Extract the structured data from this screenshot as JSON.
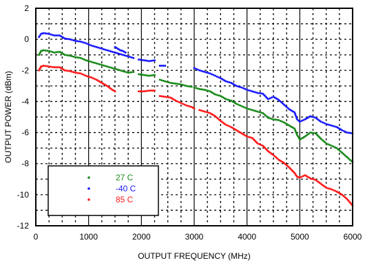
{
  "chart_data": {
    "type": "scatter",
    "title": "",
    "xlabel": "OUTPUT FREQUENCY (MHz)",
    "ylabel": "OUTPUT POWER (dBm)",
    "xlim": [
      0,
      6000
    ],
    "ylim": [
      -12,
      2
    ],
    "xticks": [
      0,
      1000,
      2000,
      3000,
      4000,
      5000,
      6000
    ],
    "yticks": [
      2,
      0,
      -2,
      -4,
      -6,
      -8,
      -10,
      -12
    ],
    "xtick_labels": [
      "0",
      "1000",
      "2000",
      "3000",
      "4000",
      "5000",
      "6000"
    ],
    "ytick_labels": [
      "2",
      "0",
      "-2",
      "-4",
      "-6",
      "-8",
      "-10",
      "-12"
    ],
    "grid": "dashed",
    "legend_position": "bottom-left",
    "series": [
      {
        "name": "27 C",
        "color": "#1a8a1a",
        "segments": [
          [
            [
              60,
              -1.0
            ],
            [
              100,
              -0.75
            ],
            [
              150,
              -0.7
            ],
            [
              250,
              -0.75
            ],
            [
              350,
              -0.85
            ],
            [
              450,
              -0.8
            ],
            [
              550,
              -1.0
            ],
            [
              650,
              -1.05
            ],
            [
              750,
              -1.15
            ],
            [
              850,
              -1.2
            ],
            [
              950,
              -1.35
            ],
            [
              1050,
              -1.45
            ],
            [
              1150,
              -1.55
            ],
            [
              1250,
              -1.65
            ],
            [
              1350,
              -1.75
            ],
            [
              1450,
              -1.85
            ],
            [
              1550,
              -1.95
            ],
            [
              1650,
              -2.05
            ],
            [
              1750,
              -2.15
            ],
            [
              1850,
              -2.1
            ]
          ],
          [
            [
              1950,
              -2.25
            ],
            [
              2050,
              -2.3
            ],
            [
              2150,
              -2.35
            ],
            [
              2250,
              -2.3
            ]
          ],
          [
            [
              2350,
              -2.6
            ],
            [
              2450,
              -2.7
            ],
            [
              2550,
              -2.8
            ],
            [
              2650,
              -2.85
            ],
            [
              2750,
              -2.9
            ],
            [
              2850,
              -3.0
            ],
            [
              2950,
              -3.05
            ]
          ],
          [
            [
              3000,
              -3.1
            ],
            [
              3100,
              -3.2
            ],
            [
              3200,
              -3.25
            ],
            [
              3300,
              -3.35
            ],
            [
              3400,
              -3.55
            ],
            [
              3500,
              -3.65
            ],
            [
              3600,
              -3.85
            ],
            [
              3700,
              -3.95
            ],
            [
              3800,
              -4.15
            ],
            [
              3900,
              -4.3
            ],
            [
              4000,
              -4.45
            ],
            [
              4100,
              -4.55
            ],
            [
              4200,
              -4.65
            ],
            [
              4300,
              -4.75
            ],
            [
              4400,
              -5.05
            ],
            [
              4500,
              -5.15
            ],
            [
              4600,
              -5.2
            ],
            [
              4700,
              -5.35
            ],
            [
              4800,
              -5.55
            ],
            [
              4900,
              -5.75
            ],
            [
              4950,
              -6.15
            ],
            [
              5000,
              -6.45
            ],
            [
              5100,
              -6.25
            ],
            [
              5200,
              -6.0
            ],
            [
              5300,
              -6.05
            ],
            [
              5400,
              -6.4
            ],
            [
              5500,
              -6.7
            ],
            [
              5600,
              -6.85
            ],
            [
              5700,
              -7.0
            ],
            [
              5800,
              -7.3
            ],
            [
              5900,
              -7.6
            ],
            [
              6000,
              -7.9
            ]
          ]
        ]
      },
      {
        "name": "-40 C",
        "color": "#1a1aff",
        "segments": [
          [
            [
              60,
              0.15
            ],
            [
              100,
              0.35
            ],
            [
              150,
              0.4
            ],
            [
              250,
              0.35
            ],
            [
              350,
              0.25
            ],
            [
              450,
              0.25
            ],
            [
              550,
              0.05
            ],
            [
              650,
              0.0
            ],
            [
              750,
              -0.1
            ],
            [
              850,
              -0.15
            ],
            [
              950,
              -0.25
            ],
            [
              1050,
              -0.4
            ],
            [
              1150,
              -0.5
            ],
            [
              1250,
              -0.6
            ],
            [
              1350,
              -0.7
            ],
            [
              1450,
              -0.8
            ],
            [
              1550,
              -0.9
            ],
            [
              1650,
              -1.0
            ],
            [
              1750,
              -1.1
            ],
            [
              1850,
              -1.2
            ]
          ],
          [
            [
              1500,
              -0.5
            ],
            [
              1550,
              -0.6
            ],
            [
              1600,
              -0.7
            ],
            [
              1650,
              -0.75
            ],
            [
              1700,
              -0.85
            ]
          ],
          [
            [
              1950,
              -1.3
            ],
            [
              2050,
              -1.35
            ],
            [
              2150,
              -1.4
            ],
            [
              2250,
              -1.35
            ]
          ],
          [
            [
              2350,
              -1.7
            ],
            [
              2450,
              -1.7
            ]
          ],
          [
            [
              3000,
              -1.85
            ],
            [
              3100,
              -2.0
            ],
            [
              3200,
              -2.1
            ],
            [
              3300,
              -2.2
            ],
            [
              3400,
              -2.35
            ],
            [
              3500,
              -2.5
            ],
            [
              3600,
              -2.7
            ],
            [
              3700,
              -2.8
            ],
            [
              3800,
              -3.0
            ],
            [
              3900,
              -3.1
            ],
            [
              4000,
              -3.25
            ],
            [
              4100,
              -3.35
            ],
            [
              4200,
              -3.45
            ],
            [
              4300,
              -3.5
            ],
            [
              4400,
              -3.85
            ],
            [
              4500,
              -3.7
            ],
            [
              4600,
              -3.9
            ],
            [
              4700,
              -4.2
            ],
            [
              4800,
              -4.5
            ],
            [
              4900,
              -4.7
            ],
            [
              4950,
              -5.15
            ],
            [
              5000,
              -5.3
            ],
            [
              5100,
              -5.15
            ],
            [
              5200,
              -4.95
            ],
            [
              5300,
              -5.05
            ],
            [
              5400,
              -5.3
            ],
            [
              5500,
              -5.45
            ],
            [
              5600,
              -5.55
            ],
            [
              5700,
              -5.65
            ],
            [
              5800,
              -5.85
            ],
            [
              5900,
              -6.0
            ],
            [
              6000,
              -6.05
            ]
          ]
        ]
      },
      {
        "name": "85 C",
        "color": "#ff1a1a",
        "segments": [
          [
            [
              60,
              -2.0
            ],
            [
              100,
              -1.75
            ],
            [
              150,
              -1.7
            ],
            [
              250,
              -1.75
            ],
            [
              350,
              -1.8
            ],
            [
              450,
              -1.8
            ],
            [
              550,
              -2.0
            ],
            [
              650,
              -2.05
            ],
            [
              750,
              -2.15
            ],
            [
              850,
              -2.2
            ],
            [
              950,
              -2.35
            ],
            [
              1050,
              -2.45
            ],
            [
              1150,
              -2.6
            ],
            [
              1250,
              -2.8
            ],
            [
              1350,
              -3.0
            ],
            [
              1450,
              -3.25
            ],
            [
              1500,
              -3.35
            ]
          ],
          [
            [
              1950,
              -3.35
            ],
            [
              2050,
              -3.35
            ],
            [
              2150,
              -3.3
            ],
            [
              2250,
              -3.3
            ]
          ],
          [
            [
              2350,
              -3.65
            ],
            [
              2450,
              -3.7
            ],
            [
              2550,
              -3.75
            ],
            [
              2650,
              -3.95
            ],
            [
              2750,
              -4.1
            ],
            [
              2850,
              -4.25
            ],
            [
              2950,
              -4.35
            ],
            [
              3000,
              -4.45
            ]
          ],
          [
            [
              3100,
              -4.55
            ],
            [
              3200,
              -4.65
            ],
            [
              3300,
              -4.75
            ],
            [
              3400,
              -4.95
            ],
            [
              3500,
              -5.25
            ],
            [
              3600,
              -5.5
            ],
            [
              3700,
              -5.65
            ],
            [
              3800,
              -5.85
            ],
            [
              3900,
              -6.05
            ],
            [
              4000,
              -6.25
            ],
            [
              4100,
              -6.35
            ],
            [
              4200,
              -6.7
            ],
            [
              4300,
              -6.85
            ],
            [
              4400,
              -7.2
            ],
            [
              4500,
              -7.45
            ],
            [
              4600,
              -7.75
            ],
            [
              4700,
              -7.95
            ],
            [
              4800,
              -8.25
            ],
            [
              4900,
              -8.6
            ],
            [
              4950,
              -8.85
            ],
            [
              5000,
              -8.9
            ],
            [
              5100,
              -8.75
            ],
            [
              5200,
              -8.95
            ],
            [
              5300,
              -9.05
            ],
            [
              5400,
              -9.3
            ],
            [
              5500,
              -9.55
            ],
            [
              5600,
              -9.65
            ],
            [
              5700,
              -9.8
            ],
            [
              5800,
              -10.0
            ],
            [
              5900,
              -10.3
            ],
            [
              6000,
              -10.7
            ]
          ]
        ]
      }
    ]
  }
}
